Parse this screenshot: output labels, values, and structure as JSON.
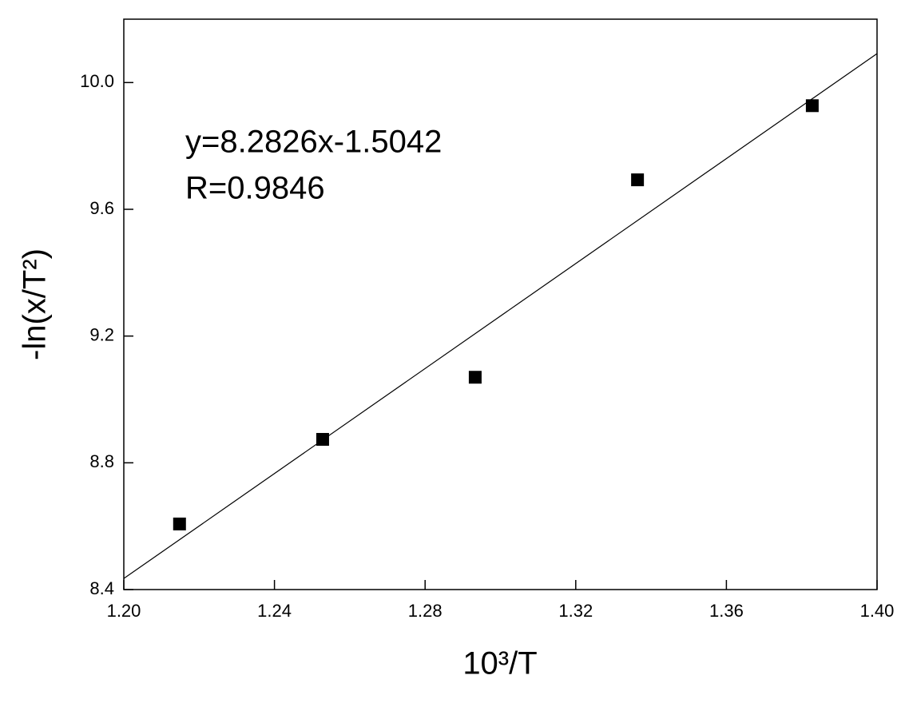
{
  "chart_data": {
    "type": "scatter",
    "x_label": "10³/T",
    "y_label": "-ln(x/T²)",
    "annotations": [
      "y=8.2826x-1.5042",
      "R=0.9846"
    ],
    "series": [
      {
        "type": "scatter",
        "color": "#000000",
        "x": [
          1.2148,
          1.2528,
          1.2933,
          1.3364,
          1.3828
        ],
        "values": [
          8.607,
          8.874,
          9.07,
          9.693,
          9.927
        ]
      },
      {
        "type": "line",
        "color": "#000000",
        "x": [
          1.2,
          1.4
        ],
        "values": [
          8.4349,
          10.0914
        ]
      }
    ],
    "xlim": [
      1.2,
      1.4
    ],
    "ylim": [
      8.4,
      10.2
    ],
    "xticks": [
      {
        "value": 1.2,
        "label": "1.20"
      },
      {
        "value": 1.24,
        "label": "1.24"
      },
      {
        "value": 1.28,
        "label": "1.28"
      },
      {
        "value": 1.32,
        "label": "1.32"
      },
      {
        "value": 1.36,
        "label": "1.36"
      },
      {
        "value": 1.4,
        "label": "1.40"
      }
    ],
    "yticks": [
      8.4,
      8.8,
      9.2,
      9.6,
      {
        "value": 10.0,
        "label": "10.0"
      }
    ]
  }
}
